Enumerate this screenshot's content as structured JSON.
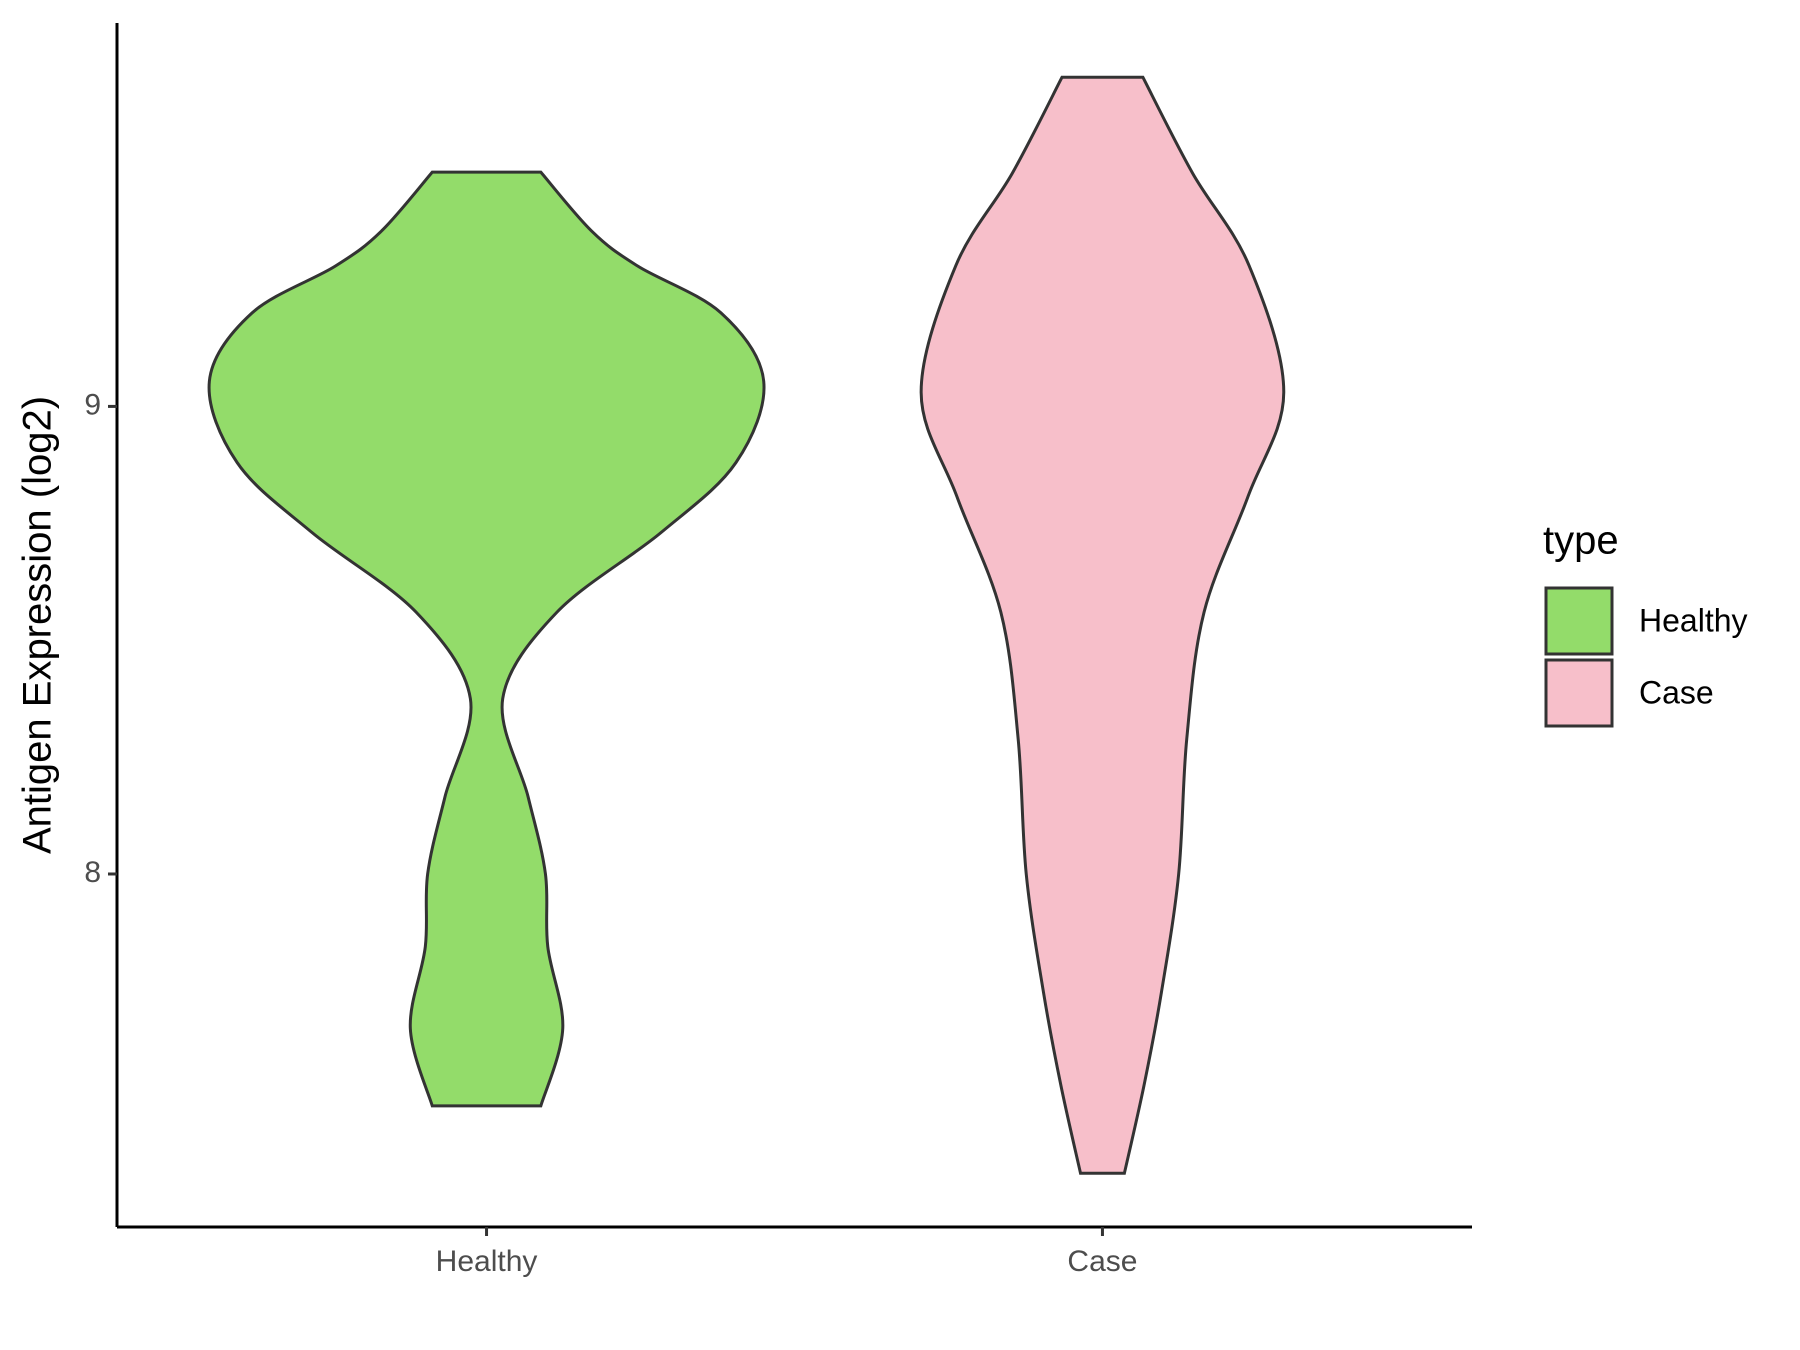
{
  "chart_data": {
    "type": "violin",
    "y_label": "Antigen Expression (log2)",
    "legend_title": "type",
    "categories": [
      "Healthy",
      "Case"
    ],
    "series": [
      {
        "name": "Healthy",
        "color": "#93dc6a",
        "y": [
          9.501,
          9.375,
          9.3,
          9.2,
          9.054,
          8.88,
          8.73,
          8.56,
          8.375,
          8.165,
          8.0,
          7.845,
          7.67,
          7.504
        ],
        "density": [
          47,
          91,
          131,
          203,
          240,
          216,
          151,
          61,
          14,
          36,
          51,
          53,
          66,
          47
        ]
      },
      {
        "name": "Case",
        "color": "#f7bfca",
        "y": [
          9.704,
          9.499,
          9.301,
          9.03,
          8.807,
          8.56,
          8.289,
          8.0,
          7.746,
          7.548,
          7.36
        ],
        "density": [
          35,
          78,
          127,
          157,
          126,
          88,
          73,
          66,
          51,
          36,
          19
        ]
      }
    ],
    "ylim": [
      7.245,
      9.82
    ],
    "yticks": [
      8,
      9
    ]
  }
}
